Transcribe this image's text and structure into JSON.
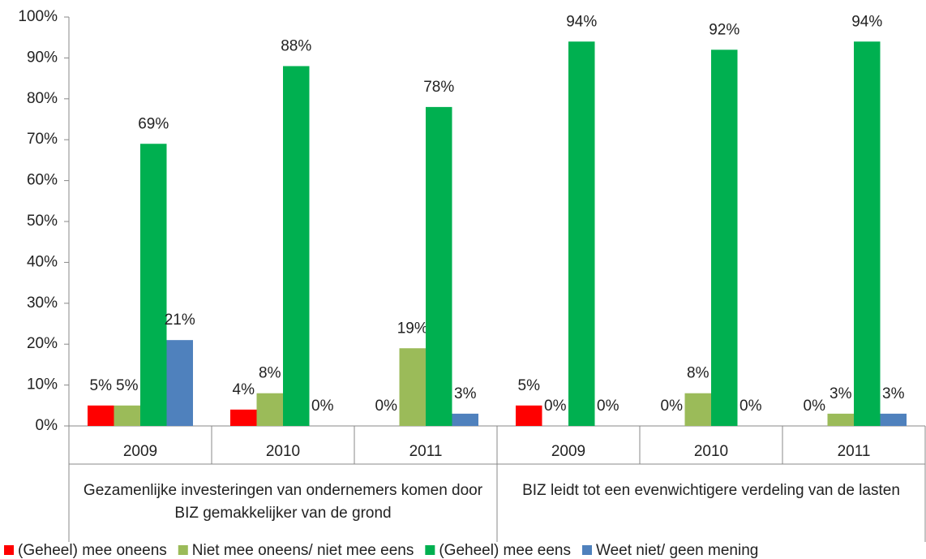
{
  "chart_data": {
    "type": "bar",
    "categories": [
      "2009",
      "2010",
      "2011",
      "2009",
      "2010",
      "2011"
    ],
    "groups": [
      {
        "label": "Gezamenlijke investeringen van ondernemers komen door BIZ gemakkelijker van de grond",
        "span": 3
      },
      {
        "label": "BIZ leidt tot een evenwichtigere verdeling van de lasten",
        "span": 3
      }
    ],
    "series": [
      {
        "name": "(Geheel) mee oneens",
        "color": "#ff0000",
        "values": [
          5,
          4,
          0,
          5,
          0,
          0
        ],
        "value_labels": [
          "5%",
          "4%",
          "0%",
          "5%",
          "0%",
          "0%"
        ]
      },
      {
        "name": "Niet mee oneens/ niet mee eens",
        "color": "#9bbb59",
        "values": [
          5,
          8,
          19,
          0,
          8,
          3
        ],
        "value_labels": [
          "5%",
          "8%",
          "19%",
          "0%",
          "8%",
          "3%"
        ]
      },
      {
        "name": "(Geheel) mee eens",
        "color": "#00b050",
        "values": [
          69,
          88,
          78,
          94,
          92,
          94
        ],
        "value_labels": [
          "69%",
          "88%",
          "78%",
          "94%",
          "92%",
          "94%"
        ]
      },
      {
        "name": "Weet niet/ geen mening",
        "color": "#4f81bd",
        "values": [
          21,
          0,
          3,
          0,
          0,
          3
        ],
        "value_labels": [
          "21%",
          "0%",
          "3%",
          "0%",
          "0%",
          "3%"
        ]
      }
    ],
    "ylim": [
      0,
      100
    ],
    "yticks": [
      {
        "value": 0,
        "label": "0%"
      },
      {
        "value": 10,
        "label": "10%"
      },
      {
        "value": 20,
        "label": "20%"
      },
      {
        "value": 30,
        "label": "30%"
      },
      {
        "value": 40,
        "label": "40%"
      },
      {
        "value": 50,
        "label": "50%"
      },
      {
        "value": 60,
        "label": "60%"
      },
      {
        "value": 70,
        "label": "70%"
      },
      {
        "value": 80,
        "label": "80%"
      },
      {
        "value": 90,
        "label": "90%"
      },
      {
        "value": 100,
        "label": "100%"
      }
    ],
    "legend": "bottom"
  }
}
